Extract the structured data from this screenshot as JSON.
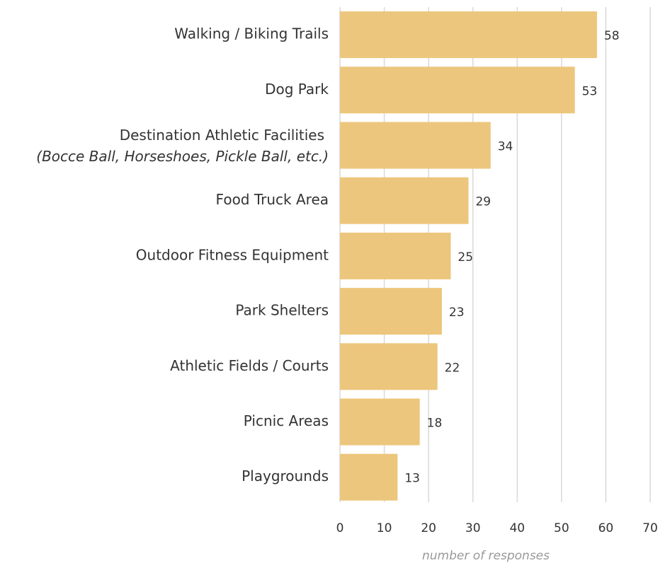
{
  "chart_data": {
    "type": "bar",
    "orientation": "horizontal",
    "categories": [
      "Walking / Biking Trails",
      "Dog Park",
      "Destination Athletic Facilities",
      "Food Truck Area",
      "Outdoor Fitness Equipment",
      "Park Shelters",
      "Athletic Fields / Courts",
      "Picnic Areas",
      "Playgrounds"
    ],
    "category_sublabels": [
      null,
      null,
      "(Bocce Ball, Horseshoes, Pickle Ball, etc.)",
      null,
      null,
      null,
      null,
      null,
      null
    ],
    "values": [
      58,
      53,
      34,
      29,
      25,
      23,
      22,
      18,
      13
    ],
    "color": "#ecc67c",
    "xlim": [
      0,
      70
    ],
    "xticks": [
      0,
      10,
      20,
      30,
      40,
      50,
      60,
      70
    ],
    "xlabel": "number of responses",
    "grid": true
  }
}
